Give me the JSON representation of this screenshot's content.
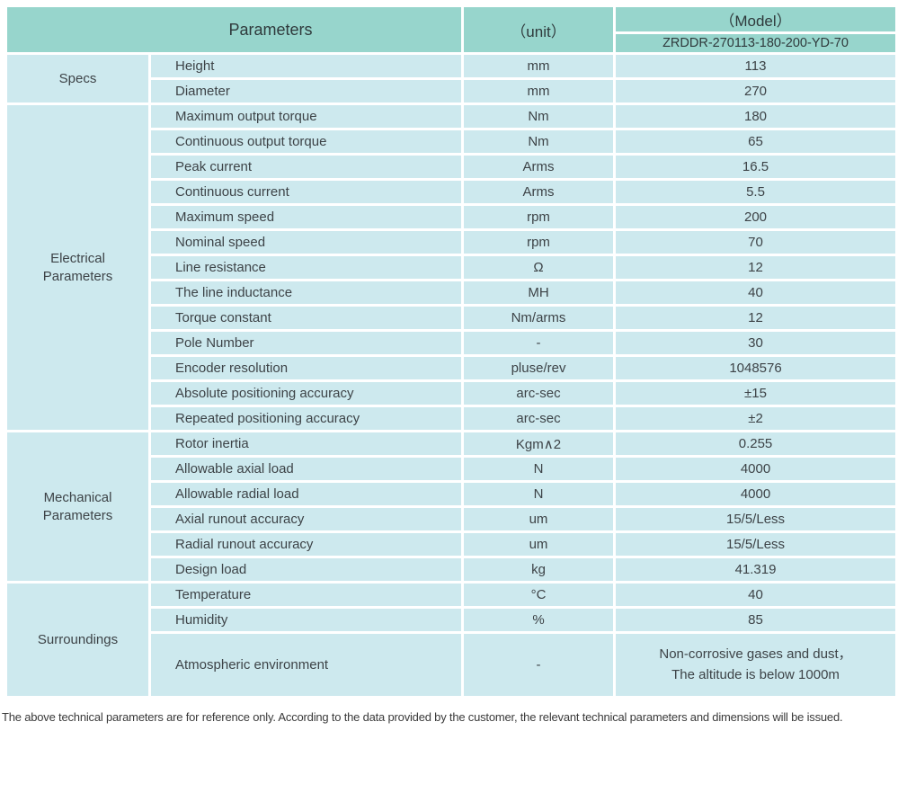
{
  "colors": {
    "header_bg": "#97d5cc",
    "cell_bg": "#cde9ee",
    "border": "#ffffff"
  },
  "header": {
    "parameters_label": "Parameters",
    "unit_label": "（unit）",
    "model_label": "（Model）",
    "model_number": "ZRDDR-270113-180-200-YD-70"
  },
  "groups": [
    {
      "name": "Specs",
      "rows": [
        {
          "param": "Height",
          "unit": "mm",
          "value": "113"
        },
        {
          "param": "Diameter",
          "unit": "mm",
          "value": "270"
        }
      ]
    },
    {
      "name": "Electrical\nParameters",
      "rows": [
        {
          "param": "Maximum output torque",
          "unit": "Nm",
          "value": "180"
        },
        {
          "param": "Continuous output torque",
          "unit": "Nm",
          "value": "65"
        },
        {
          "param": "Peak current",
          "unit": "Arms",
          "value": "16.5"
        },
        {
          "param": "Continuous current",
          "unit": "Arms",
          "value": "5.5"
        },
        {
          "param": "Maximum speed",
          "unit": "rpm",
          "value": "200"
        },
        {
          "param": "Nominal speed",
          "unit": "rpm",
          "value": "70"
        },
        {
          "param": "Line resistance",
          "unit": "Ω",
          "value": "12"
        },
        {
          "param": "The line inductance",
          "unit": "MH",
          "value": "40"
        },
        {
          "param": "Torque constant",
          "unit": "Nm/arms",
          "value": "12"
        },
        {
          "param": "Pole Number",
          "unit": "-",
          "value": "30"
        },
        {
          "param": "Encoder resolution",
          "unit": "pluse/rev",
          "value": "1048576"
        },
        {
          "param": "Absolute positioning accuracy",
          "unit": "arc-sec",
          "value": "±15"
        },
        {
          "param": "Repeated positioning accuracy",
          "unit": "arc-sec",
          "value": "±2"
        }
      ]
    },
    {
      "name": "Mechanical\nParameters",
      "rows": [
        {
          "param": "Rotor inertia",
          "unit": "Kgm∧2",
          "value": "0.255"
        },
        {
          "param": "Allowable axial load",
          "unit": "N",
          "value": "4000"
        },
        {
          "param": "Allowable radial load",
          "unit": "N",
          "value": "4000"
        },
        {
          "param": "Axial runout accuracy",
          "unit": "um",
          "value": "15/5/Less"
        },
        {
          "param": "Radial runout accuracy",
          "unit": "um",
          "value": "15/5/Less"
        },
        {
          "param": "Design load",
          "unit": "kg",
          "value": "41.319"
        }
      ]
    },
    {
      "name": "Surroundings",
      "rows": [
        {
          "param": "Temperature",
          "unit": "°C",
          "value": "40"
        },
        {
          "param": "Humidity",
          "unit": "%",
          "value": "85"
        },
        {
          "param": "Atmospheric environment",
          "unit": "-",
          "value": "Non-corrosive gases and dust，\nThe altitude is below 1000m"
        }
      ]
    }
  ],
  "footnote": "The above technical parameters are for reference only. According to the data provided by the customer, the relevant technical parameters and dimensions will be issued."
}
